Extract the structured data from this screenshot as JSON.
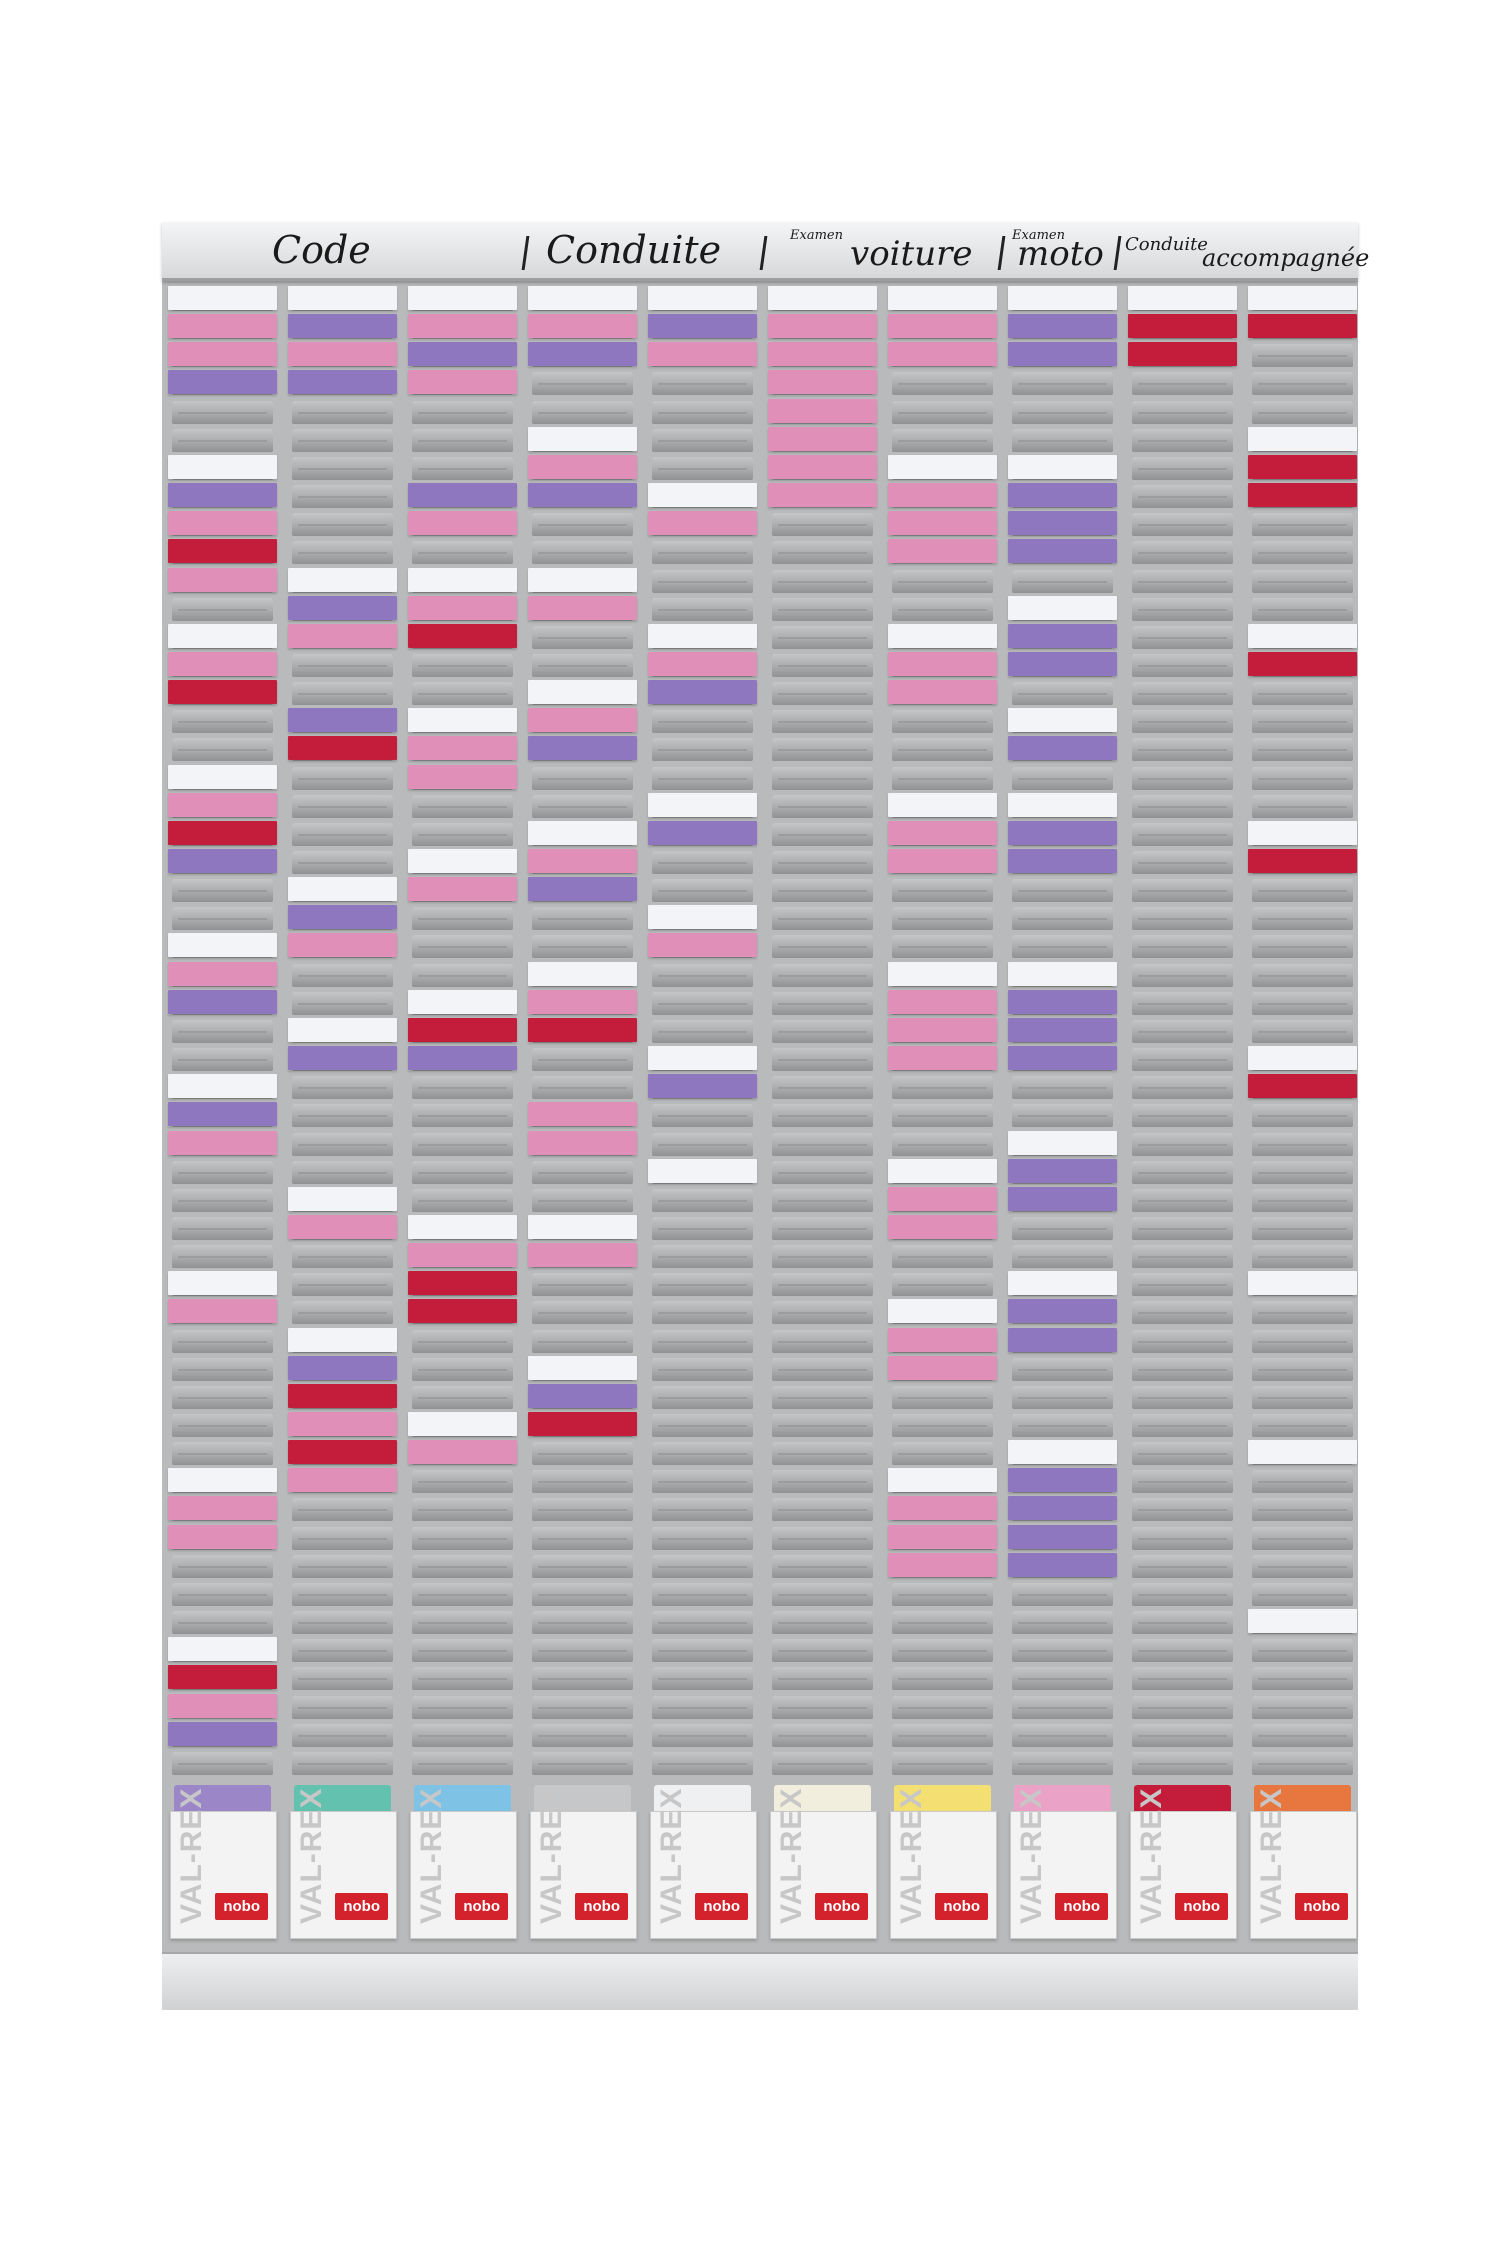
{
  "header": {
    "code": "Code",
    "conduite": "Conduite",
    "examen_voiture_small": "Examen",
    "examen_voiture": "voiture",
    "examen_moto_small": "Examen",
    "examen_moto": "moto",
    "conduite_acc_small": "Conduite",
    "conduite_acc": "accompagnée"
  },
  "colors": {
    "W": "#f3f4f7",
    "P": "#e08fb8",
    "V": "#8f77c0",
    "R": "#c41d3b",
    "board": "#b9babb"
  },
  "columns": [
    {
      "name": "col-1",
      "cards": [
        [
          0,
          "W"
        ],
        [
          1,
          "P"
        ],
        [
          2,
          "P"
        ],
        [
          3,
          "V"
        ],
        [
          6,
          "W"
        ],
        [
          7,
          "V"
        ],
        [
          8,
          "P"
        ],
        [
          9,
          "R"
        ],
        [
          10,
          "P"
        ],
        [
          12,
          "W"
        ],
        [
          13,
          "P"
        ],
        [
          14,
          "R"
        ],
        [
          17,
          "W"
        ],
        [
          18,
          "P"
        ],
        [
          19,
          "R"
        ],
        [
          20,
          "V"
        ],
        [
          23,
          "W"
        ],
        [
          24,
          "P"
        ],
        [
          25,
          "V"
        ],
        [
          28,
          "W"
        ],
        [
          29,
          "V"
        ],
        [
          30,
          "P"
        ],
        [
          35,
          "W"
        ],
        [
          36,
          "P"
        ],
        [
          42,
          "W"
        ],
        [
          43,
          "P"
        ],
        [
          44,
          "P"
        ],
        [
          48,
          "W"
        ],
        [
          49,
          "R"
        ],
        [
          50,
          "P"
        ],
        [
          51,
          "V"
        ]
      ]
    },
    {
      "name": "col-2",
      "cards": [
        [
          0,
          "W"
        ],
        [
          1,
          "V"
        ],
        [
          2,
          "P"
        ],
        [
          3,
          "V"
        ],
        [
          10,
          "W"
        ],
        [
          11,
          "V"
        ],
        [
          12,
          "P"
        ],
        [
          15,
          "V"
        ],
        [
          16,
          "R"
        ],
        [
          21,
          "W"
        ],
        [
          22,
          "V"
        ],
        [
          23,
          "P"
        ],
        [
          26,
          "W"
        ],
        [
          27,
          "V"
        ],
        [
          32,
          "W"
        ],
        [
          33,
          "P"
        ],
        [
          37,
          "W"
        ],
        [
          38,
          "V"
        ],
        [
          39,
          "R"
        ],
        [
          40,
          "P"
        ],
        [
          41,
          "R"
        ],
        [
          42,
          "P"
        ]
      ]
    },
    {
      "name": "col-3",
      "cards": [
        [
          0,
          "W"
        ],
        [
          1,
          "P"
        ],
        [
          2,
          "V"
        ],
        [
          3,
          "P"
        ],
        [
          7,
          "V"
        ],
        [
          8,
          "P"
        ],
        [
          10,
          "W"
        ],
        [
          11,
          "P"
        ],
        [
          12,
          "R"
        ],
        [
          15,
          "W"
        ],
        [
          16,
          "P"
        ],
        [
          17,
          "P"
        ],
        [
          20,
          "W"
        ],
        [
          21,
          "P"
        ],
        [
          25,
          "W"
        ],
        [
          26,
          "R"
        ],
        [
          27,
          "V"
        ],
        [
          33,
          "W"
        ],
        [
          34,
          "P"
        ],
        [
          35,
          "R"
        ],
        [
          36,
          "R"
        ],
        [
          40,
          "W"
        ],
        [
          41,
          "P"
        ]
      ]
    },
    {
      "name": "col-4",
      "cards": [
        [
          0,
          "W"
        ],
        [
          1,
          "P"
        ],
        [
          2,
          "V"
        ],
        [
          5,
          "W"
        ],
        [
          6,
          "P"
        ],
        [
          7,
          "V"
        ],
        [
          10,
          "W"
        ],
        [
          11,
          "P"
        ],
        [
          14,
          "W"
        ],
        [
          15,
          "P"
        ],
        [
          16,
          "V"
        ],
        [
          19,
          "W"
        ],
        [
          20,
          "P"
        ],
        [
          21,
          "V"
        ],
        [
          24,
          "W"
        ],
        [
          25,
          "P"
        ],
        [
          26,
          "R"
        ],
        [
          29,
          "P"
        ],
        [
          30,
          "P"
        ],
        [
          33,
          "W"
        ],
        [
          34,
          "P"
        ],
        [
          38,
          "W"
        ],
        [
          39,
          "V"
        ],
        [
          40,
          "R"
        ]
      ]
    },
    {
      "name": "col-5",
      "cards": [
        [
          0,
          "W"
        ],
        [
          1,
          "V"
        ],
        [
          2,
          "P"
        ],
        [
          7,
          "W"
        ],
        [
          8,
          "P"
        ],
        [
          12,
          "W"
        ],
        [
          13,
          "P"
        ],
        [
          14,
          "V"
        ],
        [
          18,
          "W"
        ],
        [
          19,
          "V"
        ],
        [
          22,
          "W"
        ],
        [
          23,
          "P"
        ],
        [
          27,
          "W"
        ],
        [
          28,
          "V"
        ],
        [
          31,
          "W"
        ]
      ]
    },
    {
      "name": "col-6",
      "cards": [
        [
          0,
          "W"
        ],
        [
          1,
          "P"
        ],
        [
          2,
          "P"
        ],
        [
          3,
          "P"
        ],
        [
          4,
          "P"
        ],
        [
          5,
          "P"
        ],
        [
          6,
          "P"
        ],
        [
          7,
          "P"
        ]
      ]
    },
    {
      "name": "col-7",
      "cards": [
        [
          0,
          "W"
        ],
        [
          1,
          "P"
        ],
        [
          2,
          "P"
        ],
        [
          6,
          "W"
        ],
        [
          7,
          "P"
        ],
        [
          8,
          "P"
        ],
        [
          9,
          "P"
        ],
        [
          12,
          "W"
        ],
        [
          13,
          "P"
        ],
        [
          14,
          "P"
        ],
        [
          18,
          "W"
        ],
        [
          19,
          "P"
        ],
        [
          20,
          "P"
        ],
        [
          24,
          "W"
        ],
        [
          25,
          "P"
        ],
        [
          26,
          "P"
        ],
        [
          27,
          "P"
        ],
        [
          31,
          "W"
        ],
        [
          32,
          "P"
        ],
        [
          33,
          "P"
        ],
        [
          36,
          "W"
        ],
        [
          37,
          "P"
        ],
        [
          38,
          "P"
        ],
        [
          42,
          "W"
        ],
        [
          43,
          "P"
        ],
        [
          44,
          "P"
        ],
        [
          45,
          "P"
        ]
      ]
    },
    {
      "name": "col-8",
      "cards": [
        [
          0,
          "W"
        ],
        [
          1,
          "V"
        ],
        [
          2,
          "V"
        ],
        [
          6,
          "W"
        ],
        [
          7,
          "V"
        ],
        [
          8,
          "V"
        ],
        [
          9,
          "V"
        ],
        [
          11,
          "W"
        ],
        [
          12,
          "V"
        ],
        [
          13,
          "V"
        ],
        [
          15,
          "W"
        ],
        [
          16,
          "V"
        ],
        [
          18,
          "W"
        ],
        [
          19,
          "V"
        ],
        [
          20,
          "V"
        ],
        [
          24,
          "W"
        ],
        [
          25,
          "V"
        ],
        [
          26,
          "V"
        ],
        [
          27,
          "V"
        ],
        [
          30,
          "W"
        ],
        [
          31,
          "V"
        ],
        [
          32,
          "V"
        ],
        [
          35,
          "W"
        ],
        [
          36,
          "V"
        ],
        [
          37,
          "V"
        ],
        [
          41,
          "W"
        ],
        [
          42,
          "V"
        ],
        [
          43,
          "V"
        ],
        [
          44,
          "V"
        ],
        [
          45,
          "V"
        ]
      ]
    },
    {
      "name": "col-9",
      "cards": [
        [
          0,
          "W"
        ],
        [
          1,
          "R"
        ],
        [
          2,
          "R"
        ]
      ]
    },
    {
      "name": "col-10",
      "cards": [
        [
          0,
          "W"
        ],
        [
          1,
          "R"
        ],
        [
          5,
          "W"
        ],
        [
          6,
          "R"
        ],
        [
          7,
          "R"
        ],
        [
          12,
          "W"
        ],
        [
          13,
          "R"
        ],
        [
          19,
          "W"
        ],
        [
          20,
          "R"
        ],
        [
          27,
          "W"
        ],
        [
          28,
          "R"
        ],
        [
          35,
          "W"
        ],
        [
          41,
          "W"
        ],
        [
          47,
          "W"
        ]
      ]
    }
  ],
  "holders": [
    {
      "name": "holder-1",
      "cap": "#9b86c8",
      "text": "VAL-REX",
      "logo": "nobo"
    },
    {
      "name": "holder-2",
      "cap": "#63c1b0",
      "text": "VAL-REX",
      "logo": "nobo"
    },
    {
      "name": "holder-3",
      "cap": "#7ec3e6",
      "text": "VAL-REX",
      "logo": "nobo"
    },
    {
      "name": "holder-4",
      "cap": "#c6c7c9",
      "text": "VAL-REX",
      "logo": "nobo"
    },
    {
      "name": "holder-5",
      "cap": "#eff0f2",
      "text": "VAL-REX",
      "logo": "nobo"
    },
    {
      "name": "holder-6",
      "cap": "#f2eedd",
      "text": "VAL-REX",
      "logo": "nobo"
    },
    {
      "name": "holder-7",
      "cap": "#f4df72",
      "text": "VAL-REX",
      "logo": "nobo"
    },
    {
      "name": "holder-8",
      "cap": "#eaa2c6",
      "text": "VAL-REX",
      "logo": "nobo"
    },
    {
      "name": "holder-9",
      "cap": "#c41d3b",
      "text": "VAL-REX",
      "logo": "nobo"
    },
    {
      "name": "holder-10",
      "cap": "#e8773f",
      "text": "VAL-REX",
      "logo": "nobo"
    }
  ]
}
